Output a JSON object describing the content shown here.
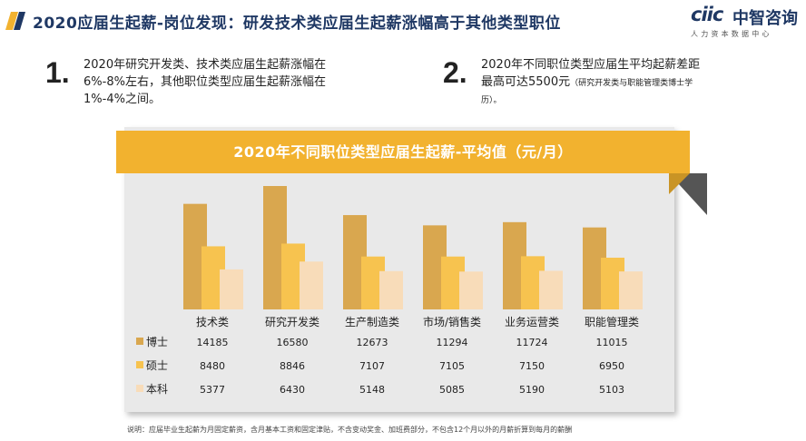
{
  "header": {
    "title": "2020应届生起薪-岗位发现：研发技术类应届生起薪涨幅高于其他类型职位",
    "logo_mark": "ciic",
    "logo_cn": "中智咨询",
    "logo_sub": "人力资本数据中心",
    "accent_color": "#f2b22f",
    "title_color": "#1f3864"
  },
  "points": [
    {
      "num": "1.",
      "lines": [
        "2020年研究开发类、技术类应届生起薪涨幅在",
        "6%-8%左右，其他职位类型应届生起薪涨幅在",
        "1%-4%之间。"
      ]
    },
    {
      "num": "2.",
      "line1": "2020年不同职位类型应届生平均起薪差距",
      "line2": "最高可达5500元",
      "note": "（研究开发类与职能管理类博士学",
      "note2": "历）。"
    }
  ],
  "chart_data": {
    "type": "bar",
    "title": "2020年不同职位类型应届生起薪-平均值（元/月）",
    "categories": [
      "技术类",
      "研究开发类",
      "生产制造类",
      "市场/销售类",
      "业务运营类",
      "职能管理类"
    ],
    "series": [
      {
        "name": "博士",
        "color": "#d9a74f",
        "values": [
          14185,
          16580,
          12673,
          11294,
          11724,
          11015
        ]
      },
      {
        "name": "硕士",
        "color": "#f7c34f",
        "values": [
          8480,
          8846,
          7107,
          7105,
          7150,
          6950
        ]
      },
      {
        "name": "本科",
        "color": "#f8dcb9",
        "values": [
          5377,
          6430,
          5148,
          5085,
          5190,
          5103
        ]
      }
    ],
    "legend": "left-table",
    "grid": false
  },
  "footnote": "说明：应届毕业生起薪为月固定薪资，含月基本工资和固定津贴，不含变动奖金、加班费部分，不包含12个月以外的月薪折算到每月的薪酬"
}
